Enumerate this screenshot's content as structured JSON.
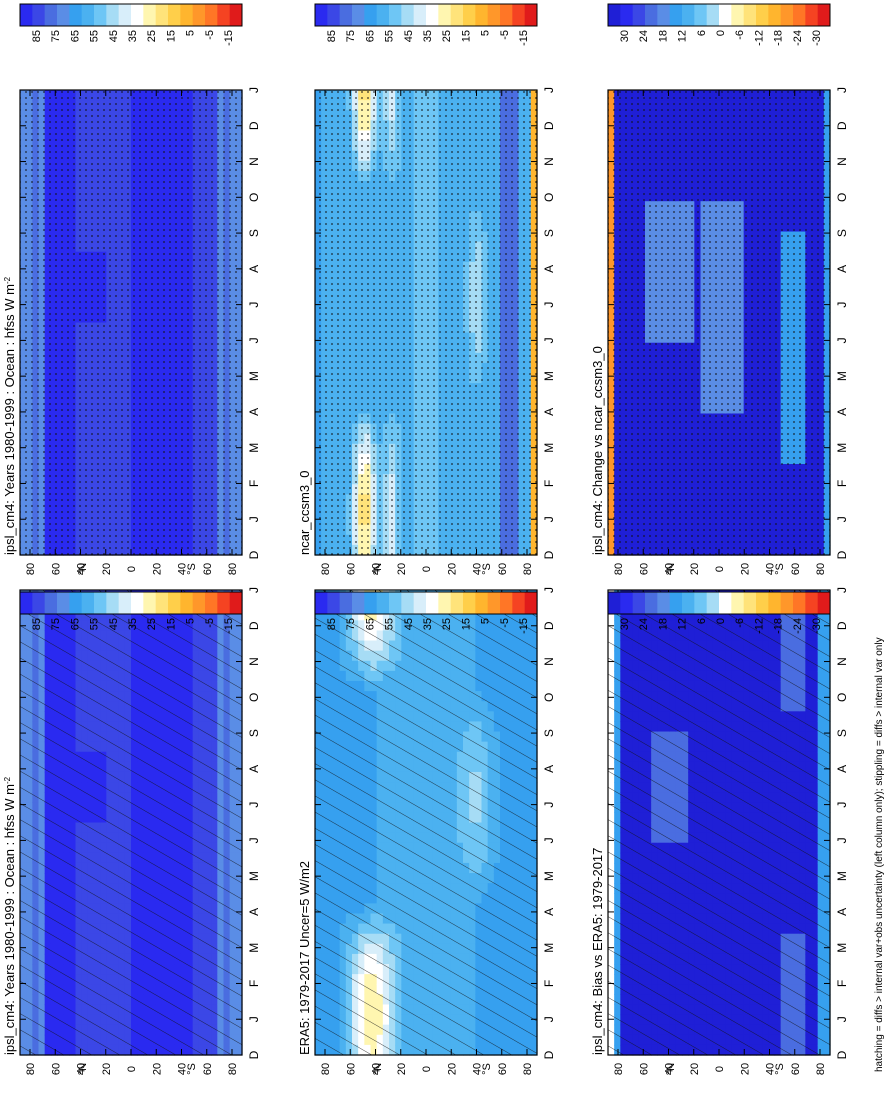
{
  "figure": {
    "footnote": "hatching = diffs > internal var+obs uncertainty (left column only); stippling = diffs > internal var only"
  },
  "colors": {
    "abs_scale": [
      "#2a2af0",
      "#3b47e6",
      "#4a6de0",
      "#5a8de6",
      "#36a0ef",
      "#4bb1f0",
      "#6ec6f5",
      "#a6dcf5",
      "#d8eefa",
      "#ffffff",
      "#fff6b0",
      "#ffe37a",
      "#ffcf4a",
      "#ffb52e",
      "#ff972a",
      "#ff7626",
      "#f54322",
      "#e01b1b"
    ],
    "diff_scale": [
      "#1f1fd6",
      "#2a2af0",
      "#3b47e6",
      "#4a6de0",
      "#5a8de6",
      "#36a0ef",
      "#4bb1f0",
      "#6ec6f5",
      "#a6dcf5",
      "#ffffff",
      "#fff6b0",
      "#ffe37a",
      "#ffcf4a",
      "#ffb52e",
      "#ff972a",
      "#ff7626",
      "#f54322",
      "#e01b1b"
    ]
  },
  "chart_data": [
    {
      "type": "heatmap",
      "id": "p1",
      "title": "ipsl_cm4: Years 1980-1999 : Ocean : hfss W m",
      "title_sup": "-2",
      "x": [
        "J",
        "F",
        "M",
        "A",
        "M",
        "J",
        "J",
        "A",
        "S",
        "O",
        "N",
        "D",
        "J"
      ],
      "xlabel_start": "D",
      "y_ticks": [
        "80",
        "60",
        "40",
        "20",
        "0",
        "20",
        "40",
        "60",
        "80"
      ],
      "y_units": [
        "°S",
        "°N"
      ],
      "colorbar_ticks": [
        "85",
        "75",
        "65",
        "55",
        "45",
        "35",
        "25",
        "15",
        "5",
        "-5",
        "-15"
      ],
      "scale": "abs",
      "pattern": "hatch",
      "field": "model_abs"
    },
    {
      "type": "heatmap",
      "id": "p2",
      "title": "ipsl_cm4: Years 1980-1999 : Ocean : hfss W m",
      "title_sup": "-2",
      "x": [
        "J",
        "F",
        "M",
        "A",
        "M",
        "J",
        "J",
        "A",
        "S",
        "O",
        "N",
        "D",
        "J"
      ],
      "xlabel_start": "D",
      "y_ticks": [
        "80",
        "60",
        "40",
        "20",
        "0",
        "20",
        "40",
        "60",
        "80"
      ],
      "y_units": [
        "°S",
        "°N"
      ],
      "colorbar_ticks": [
        "85",
        "75",
        "65",
        "55",
        "45",
        "35",
        "25",
        "15",
        "5",
        "-5",
        "-15"
      ],
      "scale": "abs",
      "pattern": "stipple",
      "field": "model_abs"
    },
    {
      "type": "heatmap",
      "id": "p3",
      "title": "ERA5: 1979-2017 Uncer=5 W/m2",
      "title_sup": "",
      "x": [
        "J",
        "F",
        "M",
        "A",
        "M",
        "J",
        "J",
        "A",
        "S",
        "O",
        "N",
        "D",
        "J"
      ],
      "xlabel_start": "D",
      "y_ticks": [
        "80",
        "60",
        "40",
        "20",
        "0",
        "20",
        "40",
        "60",
        "80"
      ],
      "y_units": [
        "°S",
        "°N"
      ],
      "colorbar_ticks": [
        "85",
        "75",
        "65",
        "55",
        "45",
        "35",
        "25",
        "15",
        "5",
        "-5",
        "-15"
      ],
      "scale": "abs",
      "pattern": "hatch",
      "field": "obs_abs"
    },
    {
      "type": "heatmap",
      "id": "p4",
      "title": "ncar_ccsm3_0",
      "title_sup": "",
      "x": [
        "J",
        "F",
        "M",
        "A",
        "M",
        "J",
        "J",
        "A",
        "S",
        "O",
        "N",
        "D",
        "J"
      ],
      "xlabel_start": "D",
      "y_ticks": [
        "80",
        "60",
        "40",
        "20",
        "0",
        "20",
        "40",
        "60",
        "80"
      ],
      "y_units": [
        "°S",
        "°N"
      ],
      "colorbar_ticks": [
        "85",
        "75",
        "65",
        "55",
        "45",
        "35",
        "25",
        "15",
        "5",
        "-5",
        "-15"
      ],
      "scale": "abs",
      "pattern": "stipple",
      "field": "ref_abs"
    },
    {
      "type": "heatmap",
      "id": "p5",
      "title": "ipsl_cm4: Bias vs ERA5: 1979-2017",
      "title_sup": "",
      "x": [
        "J",
        "F",
        "M",
        "A",
        "M",
        "J",
        "J",
        "A",
        "S",
        "O",
        "N",
        "D",
        "J"
      ],
      "xlabel_start": "D",
      "y_ticks": [
        "80",
        "60",
        "40",
        "20",
        "0",
        "20",
        "40",
        "60",
        "80"
      ],
      "y_units": [
        "°S",
        "°N"
      ],
      "colorbar_ticks": [
        "30",
        "24",
        "18",
        "12",
        "6",
        "0",
        "-6",
        "-12",
        "-18",
        "-24",
        "-30"
      ],
      "scale": "diff",
      "pattern": "hatch",
      "field": "bias"
    },
    {
      "type": "heatmap",
      "id": "p6",
      "title": "ipsl_cm4: Change vs ncar_ccsm3_0",
      "title_sup": "",
      "x": [
        "J",
        "F",
        "M",
        "A",
        "M",
        "J",
        "J",
        "A",
        "S",
        "O",
        "N",
        "D",
        "J"
      ],
      "xlabel_start": "D",
      "y_ticks": [
        "80",
        "60",
        "40",
        "20",
        "0",
        "20",
        "40",
        "60",
        "80"
      ],
      "y_units": [
        "°S",
        "°N"
      ],
      "colorbar_ticks": [
        "30",
        "24",
        "18",
        "12",
        "6",
        "0",
        "-6",
        "-12",
        "-18",
        "-24",
        "-30"
      ],
      "scale": "diff",
      "pattern": "stipple",
      "field": "change"
    }
  ]
}
